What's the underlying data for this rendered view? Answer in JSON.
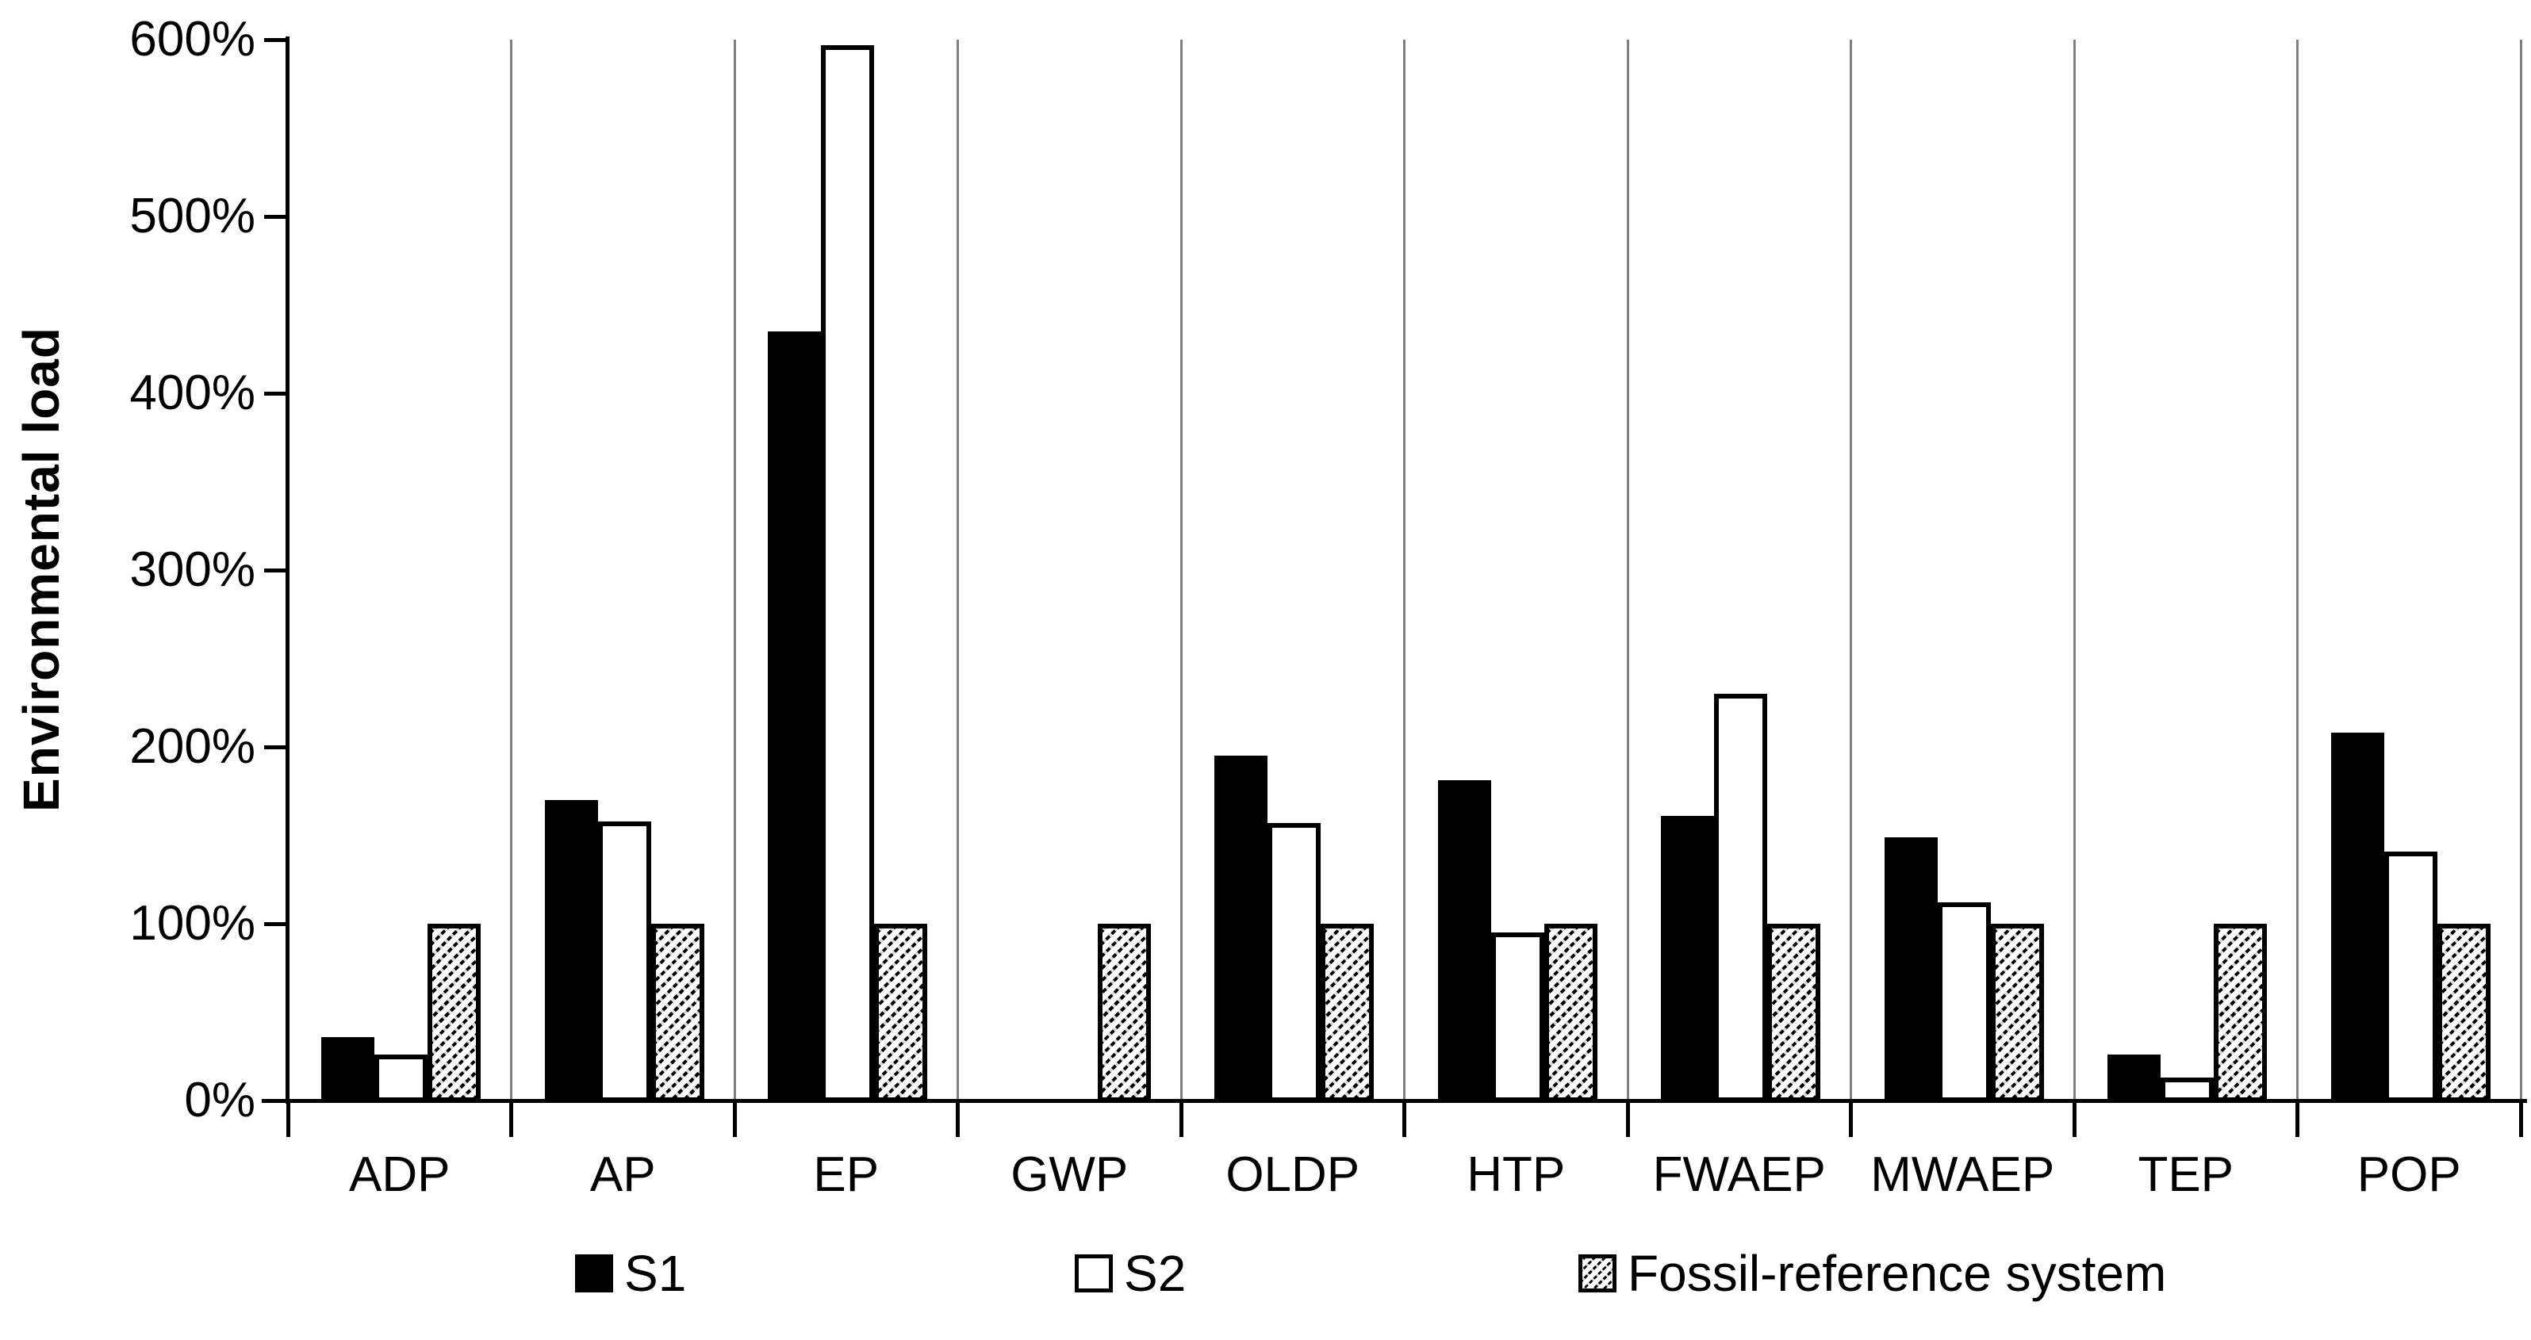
{
  "chart_data": {
    "type": "bar",
    "title": "",
    "ylabel": "Environmental load",
    "xlabel": "",
    "ylim": [
      0,
      600
    ],
    "ytick_step": 100,
    "ytick_labels": [
      "0%",
      "100%",
      "200%",
      "300%",
      "400%",
      "500%",
      "600%"
    ],
    "grid": "vertical category separators only",
    "legend_position": "bottom",
    "categories": [
      "ADP",
      "AP",
      "EP",
      "GWP",
      "OLDP",
      "HTP",
      "FWAEP",
      "MWAEP",
      "TEP",
      "POP"
    ],
    "series": [
      {
        "name": "S1",
        "swatch": "solid-black",
        "values": [
          36,
          170,
          435,
          0,
          195,
          181,
          161,
          149,
          26,
          208
        ]
      },
      {
        "name": "S2",
        "swatch": "white-outline",
        "values": [
          26,
          158,
          597,
          0,
          157,
          95,
          230,
          112,
          13,
          141
        ]
      },
      {
        "name": "Fossil-reference system",
        "swatch": "diagonal-hatch",
        "values": [
          100,
          100,
          100,
          100,
          100,
          100,
          100,
          100,
          100,
          100
        ]
      }
    ],
    "colors": {
      "background": "#ffffff",
      "axis": "#000000",
      "separator": "#7f7f7f",
      "bar_fill": "#000000",
      "bar_outline": "#000000"
    }
  }
}
